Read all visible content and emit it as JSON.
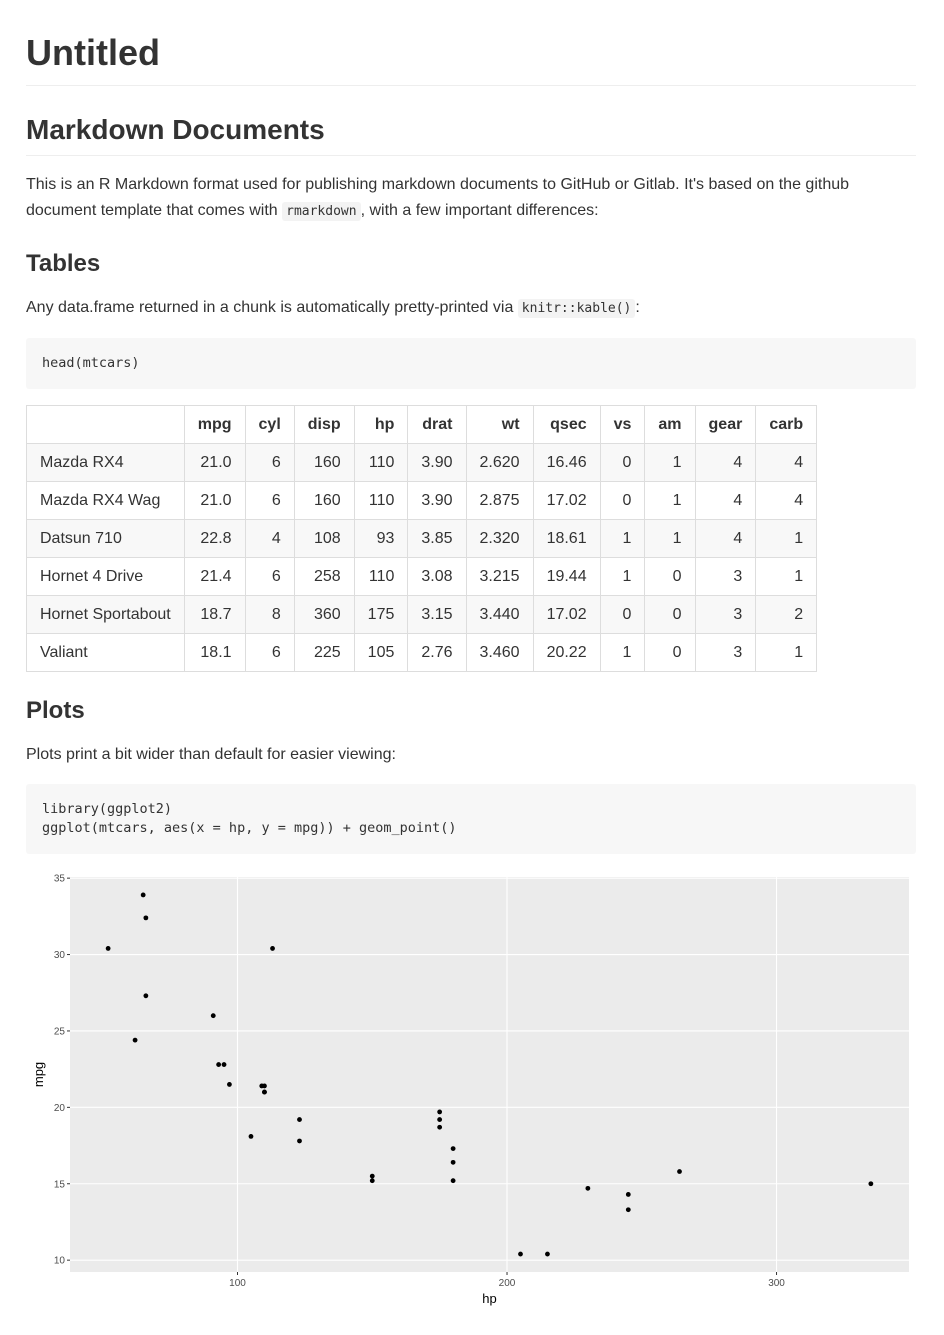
{
  "title": "Untitled",
  "section": {
    "heading": "Markdown Documents",
    "intro": {
      "before": "This is an R Markdown format used for publishing markdown documents to GitHub or Gitlab. It's based on the github document template that comes with ",
      "code": "rmarkdown",
      "after": ", with a few important differences:"
    }
  },
  "tables": {
    "heading": "Tables",
    "text": {
      "before": "Any data.frame returned in a chunk is automatically pretty-printed via ",
      "code": "knitr::kable()",
      "after": ":"
    },
    "code_lines": [
      "head(mtcars)"
    ],
    "table": {
      "header": [
        "",
        "mpg",
        "cyl",
        "disp",
        "hp",
        "drat",
        "wt",
        "qsec",
        "vs",
        "am",
        "gear",
        "carb"
      ],
      "rows": [
        [
          "Mazda RX4",
          "21.0",
          "6",
          "160",
          "110",
          "3.90",
          "2.620",
          "16.46",
          "0",
          "1",
          "4",
          "4"
        ],
        [
          "Mazda RX4 Wag",
          "21.0",
          "6",
          "160",
          "110",
          "3.90",
          "2.875",
          "17.02",
          "0",
          "1",
          "4",
          "4"
        ],
        [
          "Datsun 710",
          "22.8",
          "4",
          "108",
          "93",
          "3.85",
          "2.320",
          "18.61",
          "1",
          "1",
          "4",
          "1"
        ],
        [
          "Hornet 4 Drive",
          "21.4",
          "6",
          "258",
          "110",
          "3.08",
          "3.215",
          "19.44",
          "1",
          "0",
          "3",
          "1"
        ],
        [
          "Hornet Sportabout",
          "18.7",
          "8",
          "360",
          "175",
          "3.15",
          "3.440",
          "17.02",
          "0",
          "0",
          "3",
          "2"
        ],
        [
          "Valiant",
          "18.1",
          "6",
          "225",
          "105",
          "2.76",
          "3.460",
          "20.22",
          "1",
          "0",
          "3",
          "1"
        ]
      ]
    }
  },
  "plots": {
    "heading": "Plots",
    "text": "Plots print a bit wider than default for easier viewing:",
    "code_lines": [
      "library(ggplot2)",
      "ggplot(mtcars, aes(x = hp, y = mpg)) + geom_point()"
    ]
  },
  "chart_data": {
    "type": "scatter",
    "x_label": "hp",
    "y_label": "mpg",
    "color": "#000000",
    "grid": true,
    "x": [
      110,
      110,
      93,
      110,
      175,
      105,
      245,
      62,
      95,
      123,
      123,
      180,
      180,
      180,
      205,
      215,
      230,
      66,
      52,
      65,
      97,
      150,
      150,
      245,
      175,
      66,
      91,
      113,
      264,
      175,
      335,
      109
    ],
    "values": [
      21.0,
      21.0,
      22.8,
      21.4,
      18.7,
      18.1,
      14.3,
      24.4,
      22.8,
      19.2,
      17.8,
      16.4,
      17.3,
      15.2,
      10.4,
      10.4,
      14.7,
      32.4,
      30.4,
      33.9,
      21.5,
      15.5,
      15.2,
      13.3,
      19.2,
      27.3,
      26.0,
      30.4,
      15.8,
      19.7,
      15.0,
      21.4
    ],
    "xlim": [
      37.85,
      349.15
    ],
    "ylim": [
      9.225,
      35.075
    ],
    "xticks": [
      100,
      200,
      300
    ],
    "yticks": [
      10,
      15,
      20,
      25,
      30,
      35
    ]
  }
}
